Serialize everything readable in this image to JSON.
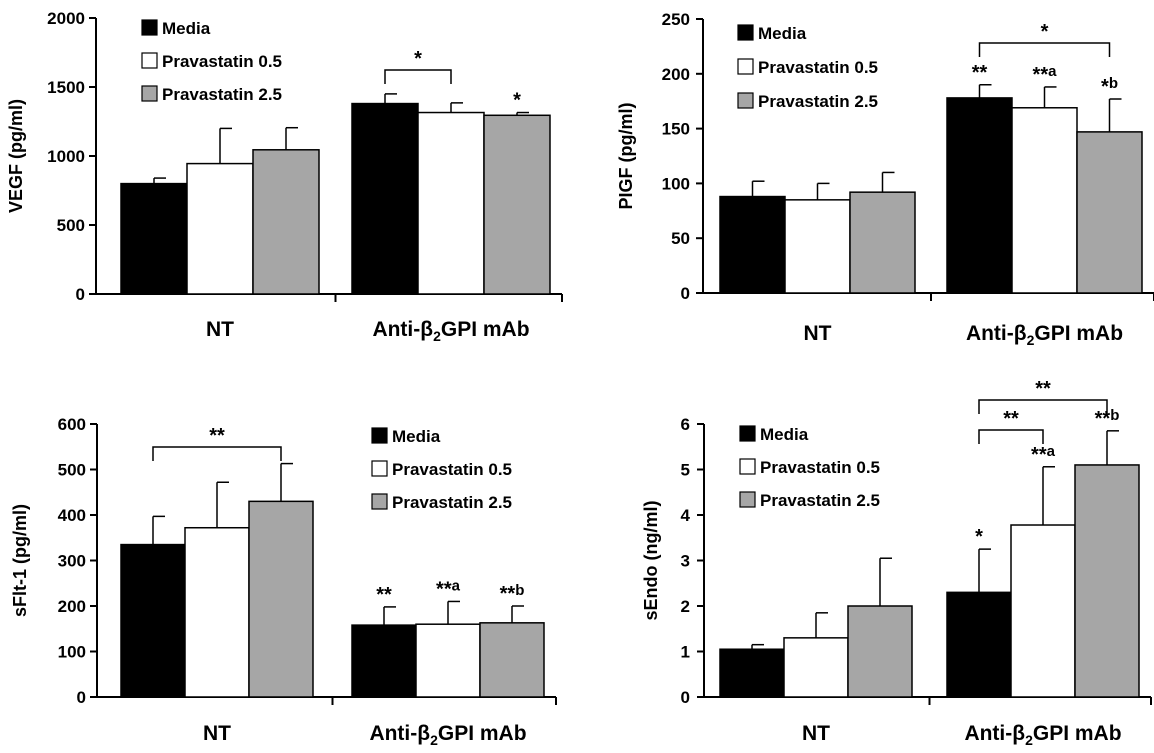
{
  "colors": {
    "media": "#000000",
    "prav05": "#ffffff",
    "prav25": "#a6a6a6",
    "axis": "#000000"
  },
  "chart_data": [
    {
      "type": "bar",
      "ylabel": "VEGF (pg/ml)",
      "ylim": [
        0,
        2000
      ],
      "yticks": [
        "0",
        "500",
        "1000",
        "1500",
        "2000"
      ],
      "categories": [
        "NT",
        "Anti-β₂GPI mAb"
      ],
      "legend": [
        "Media",
        "Pravastatin 0.5",
        "Pravastatin 2.5"
      ],
      "legend_position": "top-left",
      "series": [
        {
          "name": "Media",
          "values": [
            800,
            1380
          ],
          "errors": [
            40,
            70
          ],
          "marks": [
            "",
            ""
          ]
        },
        {
          "name": "Pravastatin 0.5",
          "values": [
            945,
            1315
          ],
          "errors": [
            255,
            70
          ],
          "marks": [
            "",
            ""
          ]
        },
        {
          "name": "Pravastatin 2.5",
          "values": [
            1045,
            1295
          ],
          "errors": [
            160,
            20
          ],
          "marks": [
            "",
            "*"
          ]
        }
      ],
      "brackets": [
        {
          "group": 1,
          "from": 0,
          "to": 1,
          "label": "*"
        }
      ]
    },
    {
      "type": "bar",
      "ylabel": "PIGF (pg/ml)",
      "ylim": [
        0,
        250
      ],
      "yticks": [
        "0",
        "50",
        "100",
        "150",
        "200",
        "250"
      ],
      "categories": [
        "NT",
        "Anti-β₂GPI mAb"
      ],
      "legend": [
        "Media",
        "Pravastatin 0.5",
        "Pravastatin 2.5"
      ],
      "legend_position": "top-right",
      "series": [
        {
          "name": "Media",
          "values": [
            88,
            178
          ],
          "errors": [
            14,
            12
          ],
          "marks": [
            "",
            "**"
          ]
        },
        {
          "name": "Pravastatin 0.5",
          "values": [
            85,
            169
          ],
          "errors": [
            15,
            19
          ],
          "marks": [
            "",
            "**a"
          ]
        },
        {
          "name": "Pravastatin 2.5",
          "values": [
            92,
            147
          ],
          "errors": [
            18,
            30
          ],
          "marks": [
            "",
            "*b"
          ]
        }
      ],
      "brackets": [
        {
          "group": 1,
          "from": 0,
          "to": 2,
          "label": "*"
        }
      ]
    },
    {
      "type": "bar",
      "ylabel": "sFlt-1 (pg/ml)",
      "ylim": [
        0,
        600
      ],
      "yticks": [
        "0",
        "100",
        "200",
        "300",
        "400",
        "500",
        "600"
      ],
      "categories": [
        "NT",
        "Anti-β₂GPI mAb"
      ],
      "legend": [
        "Media",
        "Pravastatin 0.5",
        "Pravastatin 2.5"
      ],
      "legend_position": "top-right",
      "series": [
        {
          "name": "Media",
          "values": [
            335,
            158
          ],
          "errors": [
            62,
            40
          ],
          "marks": [
            "",
            "**"
          ]
        },
        {
          "name": "Pravastatin 0.5",
          "values": [
            372,
            160
          ],
          "errors": [
            100,
            50
          ],
          "marks": [
            "",
            "**a"
          ]
        },
        {
          "name": "Pravastatin 2.5",
          "values": [
            430,
            163
          ],
          "errors": [
            83,
            37
          ],
          "marks": [
            "",
            "**b"
          ]
        }
      ],
      "brackets": [
        {
          "group": 0,
          "from": 0,
          "to": 2,
          "label": "**"
        }
      ]
    },
    {
      "type": "bar",
      "ylabel": "sEndo (ng/ml)",
      "ylim": [
        0,
        6
      ],
      "yticks": [
        "0",
        "1",
        "2",
        "3",
        "4",
        "5",
        "6"
      ],
      "categories": [
        "NT",
        "Anti-β₂GPI mAb"
      ],
      "legend": [
        "Media",
        "Pravastatin 0.5",
        "Pravastatin 2.5"
      ],
      "legend_position": "top-left",
      "series": [
        {
          "name": "Media",
          "values": [
            1.05,
            2.3
          ],
          "errors": [
            0.1,
            0.95
          ],
          "marks": [
            "",
            "*"
          ]
        },
        {
          "name": "Pravastatin 0.5",
          "values": [
            1.3,
            3.78
          ],
          "errors": [
            0.55,
            1.28
          ],
          "marks": [
            "",
            "**a"
          ]
        },
        {
          "name": "Pravastatin 2.5",
          "values": [
            2.0,
            5.1
          ],
          "errors": [
            1.05,
            0.75
          ],
          "marks": [
            "",
            "**b"
          ]
        }
      ],
      "brackets": [
        {
          "group": 1,
          "from": 0,
          "to": 1,
          "label": "**"
        },
        {
          "group": 1,
          "from": 0,
          "to": 2,
          "label": "**"
        }
      ]
    }
  ]
}
